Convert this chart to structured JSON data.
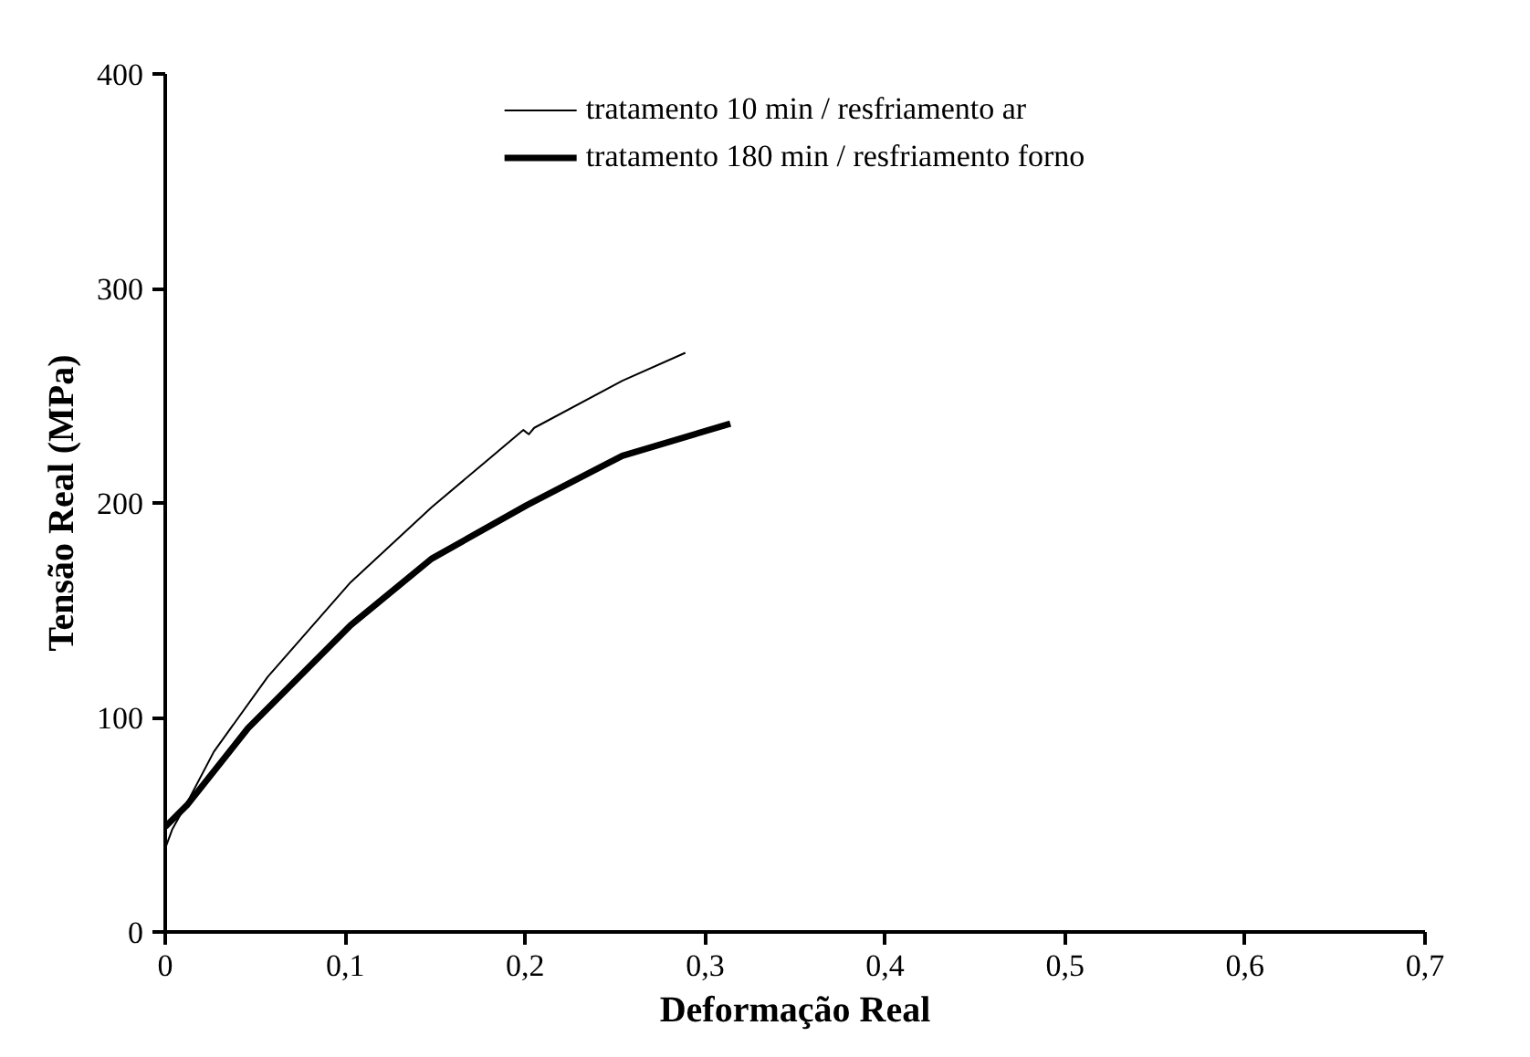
{
  "chart_data": {
    "type": "line",
    "xlabel": "Deformação Real",
    "ylabel": "Tensão Real (MPa)",
    "xlim": [
      0,
      0.7
    ],
    "ylim": [
      0,
      400
    ],
    "xticks": [
      {
        "value": 0,
        "label": "0"
      },
      {
        "value": 0.1,
        "label": "0,1"
      },
      {
        "value": 0.2,
        "label": "0,2"
      },
      {
        "value": 0.3,
        "label": "0,3"
      },
      {
        "value": 0.4,
        "label": "0,4"
      },
      {
        "value": 0.5,
        "label": "0,5"
      },
      {
        "value": 0.6,
        "label": "0,6"
      },
      {
        "value": 0.7,
        "label": "0,7"
      }
    ],
    "yticks": [
      0,
      100,
      200,
      300,
      400
    ],
    "grid": false,
    "legend": "top",
    "marker": "none",
    "line_style": "solid",
    "series": [
      {
        "name": "tratamento 10 min / resfriamento ar",
        "color": "#000000",
        "x": [
          0,
          0.004,
          0.012,
          0.027,
          0.057,
          0.103,
          0.148,
          0.199,
          0.202,
          0.205,
          0.254,
          0.289
        ],
        "values": [
          39,
          48,
          60,
          84,
          119,
          163,
          198,
          234,
          232,
          235,
          257,
          270
        ]
      },
      {
        "name": "tratamento 180 min / resfriamento forno",
        "color": "#000000",
        "x": [
          0,
          0.012,
          0.046,
          0.103,
          0.148,
          0.201,
          0.254,
          0.314
        ],
        "values": [
          49,
          59,
          95,
          143,
          174,
          199,
          222,
          237
        ]
      }
    ]
  }
}
